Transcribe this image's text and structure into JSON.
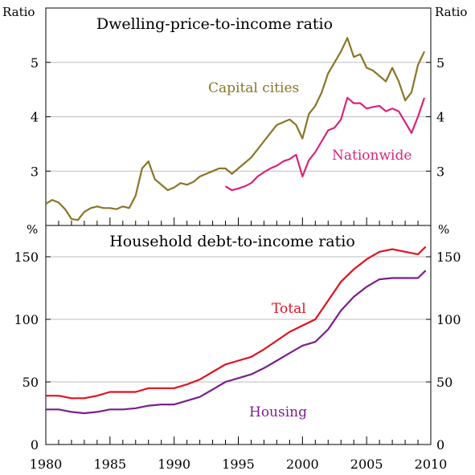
{
  "chart_data": [
    {
      "type": "line",
      "title": "Dwelling-price-to-income ratio",
      "ylabel_left": "Ratio",
      "ylabel_right": "Ratio",
      "ylim": [
        2.0,
        6.0
      ],
      "xlim": [
        1980,
        2010
      ],
      "yticks": [
        3,
        4,
        5
      ],
      "ytick_labels": [
        "3",
        "4",
        "5"
      ],
      "grid": true,
      "series": [
        {
          "name": "Capital cities",
          "color": "#8a7528",
          "x": [
            1980,
            1980.5,
            1981,
            1981.5,
            1982,
            1982.5,
            1983,
            1983.5,
            1984,
            1984.5,
            1985,
            1985.5,
            1986,
            1986.5,
            1987,
            1987.5,
            1988,
            1988.5,
            1989,
            1989.5,
            1990,
            1990.5,
            1991,
            1991.5,
            1992,
            1992.5,
            1993,
            1993.5,
            1994,
            1994.5,
            1995,
            1995.5,
            1996,
            1996.5,
            1997,
            1997.5,
            1998,
            1998.5,
            1999,
            1999.5,
            2000,
            2000.5,
            2001,
            2001.5,
            2002,
            2002.5,
            2003,
            2003.5,
            2004,
            2004.5,
            2005,
            2005.5,
            2006,
            2006.5,
            2007,
            2007.5,
            2008,
            2008.5,
            2009,
            2009.5
          ],
          "y": [
            2.4,
            2.47,
            2.42,
            2.3,
            2.12,
            2.1,
            2.25,
            2.32,
            2.35,
            2.32,
            2.32,
            2.3,
            2.35,
            2.32,
            2.55,
            3.05,
            3.18,
            2.85,
            2.75,
            2.65,
            2.7,
            2.78,
            2.75,
            2.8,
            2.9,
            2.95,
            3.0,
            3.05,
            3.05,
            2.95,
            3.05,
            3.15,
            3.25,
            3.4,
            3.55,
            3.7,
            3.85,
            3.9,
            3.95,
            3.85,
            3.6,
            4.05,
            4.2,
            4.45,
            4.8,
            5.0,
            5.2,
            5.45,
            5.1,
            5.15,
            4.9,
            4.85,
            4.75,
            4.65,
            4.9,
            4.65,
            4.3,
            4.45,
            4.95,
            5.2
          ]
        },
        {
          "name": "Nationwide",
          "color": "#d8247a",
          "x": [
            1994,
            1994.5,
            1995,
            1995.5,
            1996,
            1996.5,
            1997,
            1997.5,
            1998,
            1998.5,
            1999,
            1999.5,
            2000,
            2000.5,
            2001,
            2001.5,
            2002,
            2002.5,
            2003,
            2003.5,
            2004,
            2004.5,
            2005,
            2005.5,
            2006,
            2006.5,
            2007,
            2007.5,
            2008,
            2008.5,
            2009,
            2009.5
          ],
          "y": [
            2.72,
            2.65,
            2.68,
            2.72,
            2.78,
            2.9,
            2.98,
            3.05,
            3.1,
            3.18,
            3.22,
            3.3,
            2.9,
            3.2,
            3.35,
            3.55,
            3.75,
            3.8,
            3.95,
            4.35,
            4.25,
            4.25,
            4.15,
            4.18,
            4.2,
            4.1,
            4.15,
            4.1,
            3.9,
            3.7,
            4.0,
            4.35
          ]
        }
      ]
    },
    {
      "type": "line",
      "title": "Household debt-to-income ratio",
      "ylabel_left": "%",
      "ylabel_right": "%",
      "ylim": [
        0,
        175
      ],
      "xlim": [
        1980,
        2010
      ],
      "yticks": [
        0,
        50,
        100,
        150
      ],
      "ytick_labels": [
        "0",
        "50",
        "100",
        "150"
      ],
      "xticks": [
        1980,
        1985,
        1990,
        1995,
        2000,
        2005,
        2010
      ],
      "xtick_labels": [
        "1980",
        "1985",
        "1990",
        "1995",
        "2000",
        "2005",
        "2010"
      ],
      "grid": true,
      "series": [
        {
          "name": "Total",
          "color": "#e3101d",
          "x": [
            1980,
            1981,
            1982,
            1983,
            1984,
            1985,
            1986,
            1987,
            1988,
            1989,
            1990,
            1991,
            1992,
            1993,
            1994,
            1995,
            1996,
            1997,
            1998,
            1999,
            2000,
            2001,
            2002,
            2003,
            2004,
            2005,
            2006,
            2007,
            2008,
            2009,
            2009.6
          ],
          "y": [
            39,
            39,
            37,
            37,
            39,
            42,
            42,
            42,
            45,
            45,
            45,
            48,
            52,
            58,
            64,
            67,
            70,
            76,
            83,
            90,
            95,
            100,
            115,
            130,
            140,
            148,
            154,
            156,
            154,
            152,
            158
          ]
        },
        {
          "name": "Housing",
          "color": "#7a1f8a",
          "x": [
            1980,
            1981,
            1982,
            1983,
            1984,
            1985,
            1986,
            1987,
            1988,
            1989,
            1990,
            1991,
            1992,
            1993,
            1994,
            1995,
            1996,
            1997,
            1998,
            1999,
            2000,
            2001,
            2002,
            2003,
            2004,
            2005,
            2006,
            2007,
            2008,
            2009,
            2009.6
          ],
          "y": [
            28,
            28,
            26,
            25,
            26,
            28,
            28,
            29,
            31,
            32,
            32,
            35,
            38,
            44,
            50,
            53,
            56,
            61,
            67,
            73,
            79,
            82,
            92,
            107,
            118,
            126,
            132,
            133,
            133,
            133,
            139
          ]
        }
      ]
    }
  ]
}
